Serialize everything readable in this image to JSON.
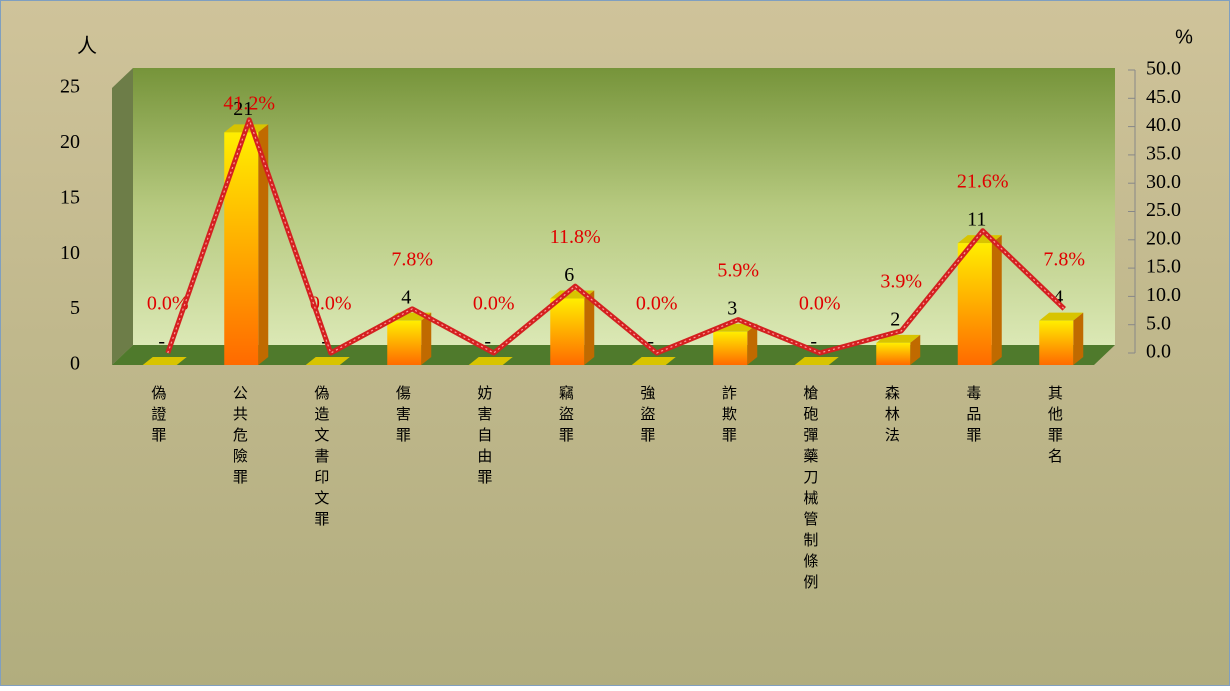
{
  "chart_data": {
    "type": "bar-line",
    "categories": [
      "偽證罪",
      "公共危險罪",
      "偽造文書印文罪",
      "傷害罪",
      "妨害自由罪",
      "竊盜罪",
      "強盜罪",
      "詐欺罪",
      "槍砲彈藥刀械管制條例",
      "森林法",
      "毒品罪",
      "其他罪名"
    ],
    "ylabel": "人",
    "y2label": "%",
    "series": [
      {
        "color": "#ff9900",
        "values": [
          0,
          21,
          0,
          4,
          0,
          6,
          0,
          3,
          0,
          2,
          11,
          4
        ],
        "value_labels": [
          "-",
          "21",
          "-",
          "4",
          "-",
          "6",
          "-",
          "3",
          "-",
          "2",
          "11",
          "4"
        ]
      },
      {
        "color": "#d42020",
        "axis": "y2",
        "values": [
          0,
          41.2,
          0,
          7.8,
          0,
          11.8,
          0,
          5.9,
          0,
          3.9,
          21.6,
          7.8
        ],
        "value_labels": [
          "0.0%",
          "41.2%",
          "0.0%",
          "7.8%",
          "0.0%",
          "11.8%",
          "0.0%",
          "5.9%",
          "0.0%",
          "3.9%",
          "21.6%",
          "7.8%"
        ]
      }
    ],
    "ylim": [
      0,
      25
    ],
    "yticks": [
      0,
      5,
      10,
      15,
      20,
      25
    ],
    "y2lim": [
      0,
      50
    ],
    "y2ticks": [
      {
        "value": 0,
        "label": "0.0"
      },
      {
        "value": 5,
        "label": "5.0"
      },
      {
        "value": 10,
        "label": "10.0"
      },
      {
        "value": 15,
        "label": "15.0"
      },
      {
        "value": 20,
        "label": "20.0"
      },
      {
        "value": 25,
        "label": "25.0"
      },
      {
        "value": 30,
        "label": "30.0"
      },
      {
        "value": 35,
        "label": "35.0"
      },
      {
        "value": 40,
        "label": "40.0"
      },
      {
        "value": 45,
        "label": "45.0"
      },
      {
        "value": 50,
        "label": "50.0"
      }
    ]
  }
}
